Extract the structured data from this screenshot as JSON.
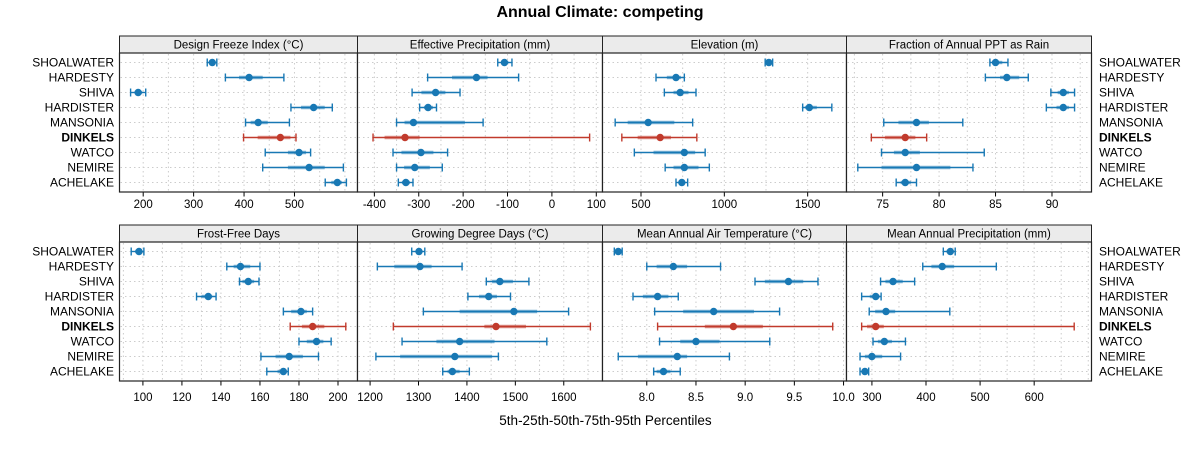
{
  "chart_data": {
    "type": "dotplot",
    "title": "Annual Climate: competing",
    "xlabel": "5th-25th-50th-75th-95th Percentiles",
    "legend": "none",
    "grid": "dotted",
    "sites": [
      "SHOALWATER",
      "HARDESTY",
      "SHIVA",
      "HARDISTER",
      "MANSONIA",
      "DINKELS",
      "WATCO",
      "NEMIRE",
      "ACHELAKE"
    ],
    "highlight_site": "DINKELS",
    "colors": {
      "series": "#1878B4",
      "highlight": "#C13A2C",
      "strip_bg": "#EBEBEB",
      "gridline": "#CCCCCC",
      "border": "#222222"
    },
    "panels": [
      {
        "title": "Design Freeze Index (°C)",
        "row": 0,
        "col": 0,
        "xlim": [
          153,
          625
        ],
        "tick_values": [
          200,
          300,
          400,
          500
        ],
        "tick_labels": [
          "200",
          "300",
          "400",
          "500"
        ],
        "values": [
          [
            327,
            332,
            337,
            341,
            346
          ],
          [
            363,
            390,
            410,
            437,
            479
          ],
          [
            175,
            183,
            190,
            198,
            205
          ],
          [
            493,
            513,
            538,
            560,
            575
          ],
          [
            403,
            413,
            428,
            447,
            490
          ],
          [
            399,
            427,
            472,
            492,
            503
          ],
          [
            442,
            487,
            509,
            523,
            532
          ],
          [
            437,
            487,
            529,
            560,
            597
          ],
          [
            561,
            573,
            585,
            594,
            603
          ]
        ]
      },
      {
        "title": "Effective Precipitation (mm)",
        "row": 0,
        "col": 1,
        "xlim": [
          -438,
          114
        ],
        "tick_values": [
          -400,
          -300,
          -200,
          -100,
          0,
          100
        ],
        "tick_labels": [
          "-400",
          "-300",
          "-200",
          "-100",
          "0",
          "100"
        ],
        "values": [
          [
            -122,
            -114,
            -107,
            -98,
            -90
          ],
          [
            -280,
            -225,
            -170,
            -145,
            -75
          ],
          [
            -315,
            -294,
            -262,
            -240,
            -207
          ],
          [
            -298,
            -288,
            -279,
            -268,
            -260
          ],
          [
            -350,
            -332,
            -312,
            -196,
            -155
          ],
          [
            -403,
            -377,
            -331,
            -298,
            85
          ],
          [
            -358,
            -339,
            -295,
            -267,
            -235
          ],
          [
            -350,
            -333,
            -309,
            -275,
            -247
          ],
          [
            -346,
            -338,
            -329,
            -320,
            -313
          ]
        ]
      },
      {
        "title": "Elevation (m)",
        "row": 0,
        "col": 2,
        "xlim": [
          269,
          1733
        ],
        "tick_values": [
          500,
          1000,
          1500
        ],
        "tick_labels": [
          "500",
          "1000",
          "1500"
        ],
        "values": [
          [
            1245,
            1258,
            1267,
            1278,
            1290
          ],
          [
            590,
            655,
            710,
            740,
            760
          ],
          [
            640,
            695,
            735,
            785,
            830
          ],
          [
            1470,
            1485,
            1510,
            1555,
            1645
          ],
          [
            345,
            420,
            543,
            700,
            810
          ],
          [
            385,
            480,
            615,
            680,
            835
          ],
          [
            460,
            575,
            760,
            825,
            885
          ],
          [
            645,
            695,
            760,
            845,
            910
          ],
          [
            710,
            728,
            745,
            762,
            780
          ]
        ]
      },
      {
        "title": "Fraction of Annual PPT as Rain",
        "row": 0,
        "col": 3,
        "xlim": [
          71.8,
          93.5
        ],
        "tick_values": [
          75,
          80,
          85,
          90
        ],
        "tick_labels": [
          "75",
          "80",
          "85",
          "90"
        ],
        "values": [
          [
            84.5,
            84.7,
            85.0,
            85.6,
            86.1
          ],
          [
            84.1,
            85.4,
            86.0,
            87.1,
            87.9
          ],
          [
            89.9,
            90.5,
            91.0,
            91.5,
            92.0
          ],
          [
            89.5,
            90.4,
            91.0,
            91.5,
            92.0
          ],
          [
            75.1,
            76.4,
            78.0,
            79.1,
            82.1
          ],
          [
            74.0,
            75.2,
            77.0,
            77.9,
            78.9
          ],
          [
            74.9,
            76.0,
            77.0,
            78.3,
            84.0
          ],
          [
            72.8,
            74.9,
            78.0,
            81.0,
            83.0
          ],
          [
            76.2,
            76.6,
            77.0,
            77.5,
            78.0
          ]
        ]
      },
      {
        "title": "Frost-Free Days",
        "row": 1,
        "col": 0,
        "xlim": [
          88,
          210
        ],
        "tick_values": [
          100,
          120,
          140,
          160,
          180,
          200
        ],
        "tick_labels": [
          "100",
          "120",
          "140",
          "160",
          "180",
          "200"
        ],
        "values": [
          [
            94,
            96,
            98,
            99.5,
            100.5
          ],
          [
            143,
            146.5,
            150,
            155,
            160
          ],
          [
            149.5,
            151,
            154,
            157,
            159.5
          ],
          [
            127.5,
            130,
            133.5,
            135.5,
            137.5
          ],
          [
            172,
            176,
            181,
            184,
            187
          ],
          [
            175.5,
            181.5,
            187,
            193,
            204
          ],
          [
            180,
            184,
            189,
            192.5,
            196.5
          ],
          [
            160.5,
            168,
            175,
            182,
            190
          ],
          [
            163.5,
            169,
            172,
            173.5,
            174.5
          ]
        ]
      },
      {
        "title": "Growing Degree Days (°C)",
        "row": 1,
        "col": 1,
        "xlim": [
          1174,
          1680
        ],
        "tick_values": [
          1200,
          1300,
          1400,
          1500,
          1600
        ],
        "tick_labels": [
          "1200",
          "1300",
          "1400",
          "1500",
          "1600"
        ],
        "values": [
          [
            1286,
            1295,
            1301,
            1307,
            1313
          ],
          [
            1215,
            1250,
            1303,
            1327,
            1390
          ],
          [
            1440,
            1452,
            1468,
            1495,
            1528
          ],
          [
            1402,
            1425,
            1445,
            1462,
            1490
          ],
          [
            1310,
            1385,
            1497,
            1545,
            1610
          ],
          [
            1248,
            1436,
            1460,
            1522,
            1655
          ],
          [
            1266,
            1337,
            1385,
            1457,
            1565
          ],
          [
            1212,
            1262,
            1375,
            1452,
            1465
          ],
          [
            1350,
            1360,
            1370,
            1385,
            1405
          ]
        ]
      },
      {
        "title": "Mean Annual Air Temperature (°C)",
        "row": 1,
        "col": 2,
        "xlim": [
          7.55,
          10.03
        ],
        "tick_values": [
          8.0,
          8.5,
          9.0,
          9.5,
          10.0
        ],
        "tick_labels": [
          "8.0",
          "8.5",
          "9.0",
          "9.5",
          "10.0"
        ],
        "values": [
          [
            7.67,
            7.69,
            7.71,
            7.73,
            7.75
          ],
          [
            8.0,
            8.1,
            8.27,
            8.41,
            8.75
          ],
          [
            9.1,
            9.2,
            9.44,
            9.59,
            9.74
          ],
          [
            7.86,
            7.96,
            8.11,
            8.22,
            8.32
          ],
          [
            8.08,
            8.37,
            8.68,
            9.09,
            9.35
          ],
          [
            8.11,
            8.59,
            8.88,
            9.18,
            9.89
          ],
          [
            8.13,
            8.34,
            8.5,
            8.74,
            9.25
          ],
          [
            7.71,
            7.91,
            8.31,
            8.41,
            8.84
          ],
          [
            8.07,
            8.1,
            8.17,
            8.24,
            8.34
          ]
        ]
      },
      {
        "title": "Mean Annual Precipitation (mm)",
        "row": 1,
        "col": 3,
        "xlim": [
          253,
          706
        ],
        "tick_values": [
          300,
          400,
          500,
          600
        ],
        "tick_labels": [
          "300",
          "400",
          "500",
          "600"
        ],
        "values": [
          [
            432,
            438,
            445,
            450,
            454
          ],
          [
            394,
            410,
            430,
            452,
            530
          ],
          [
            316,
            325,
            339,
            357,
            379
          ],
          [
            281,
            296,
            307,
            314,
            317
          ],
          [
            295,
            306,
            326,
            343,
            444
          ],
          [
            281,
            291,
            307,
            322,
            674
          ],
          [
            302,
            311,
            323,
            337,
            362
          ],
          [
            278,
            287,
            300,
            319,
            353
          ],
          [
            278,
            283,
            287,
            291,
            294
          ]
        ]
      }
    ]
  }
}
